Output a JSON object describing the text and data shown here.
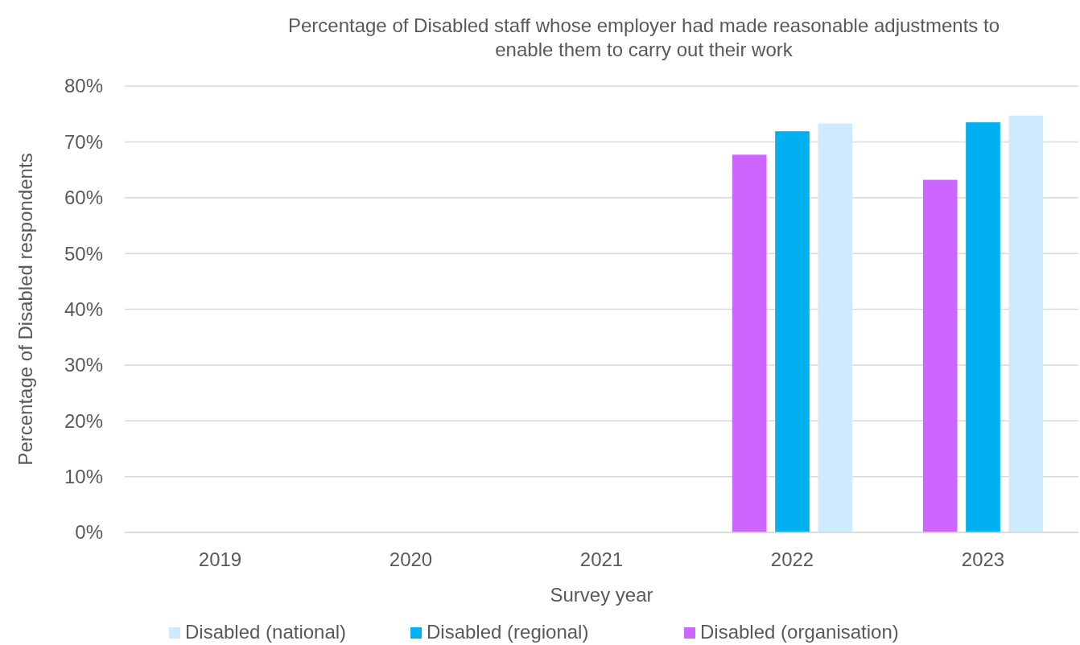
{
  "chart_data": {
    "type": "bar",
    "title": "Percentage of Disabled staff whose employer had made reasonable adjustments to enable them to carry out their work",
    "xlabel": "Survey year",
    "ylabel": "Percentage of Disabled respondents",
    "categories": [
      "2019",
      "2020",
      "2021",
      "2022",
      "2023"
    ],
    "series": [
      {
        "name": "Disabled (organisation)",
        "color": "#cc66ff",
        "values": [
          null,
          null,
          null,
          67.7,
          63.2
        ]
      },
      {
        "name": "Disabled (regional)",
        "color": "#00b0f0",
        "values": [
          null,
          null,
          null,
          71.9,
          73.5
        ]
      },
      {
        "name": "Disabled (national)",
        "color": "#cdebfc",
        "values": [
          null,
          null,
          null,
          73.3,
          74.7
        ]
      }
    ],
    "ylim": [
      0,
      80
    ],
    "yticks": [
      {
        "value": 0,
        "label": "0%"
      },
      {
        "value": 10,
        "label": "10%"
      },
      {
        "value": 20,
        "label": "20%"
      },
      {
        "value": 30,
        "label": "30%"
      },
      {
        "value": 40,
        "label": "40%"
      },
      {
        "value": 50,
        "label": "50%"
      },
      {
        "value": 60,
        "label": "60%"
      },
      {
        "value": 70,
        "label": "70%"
      },
      {
        "value": 80,
        "label": "80%"
      }
    ],
    "grid": "y",
    "legend": "bottom"
  }
}
